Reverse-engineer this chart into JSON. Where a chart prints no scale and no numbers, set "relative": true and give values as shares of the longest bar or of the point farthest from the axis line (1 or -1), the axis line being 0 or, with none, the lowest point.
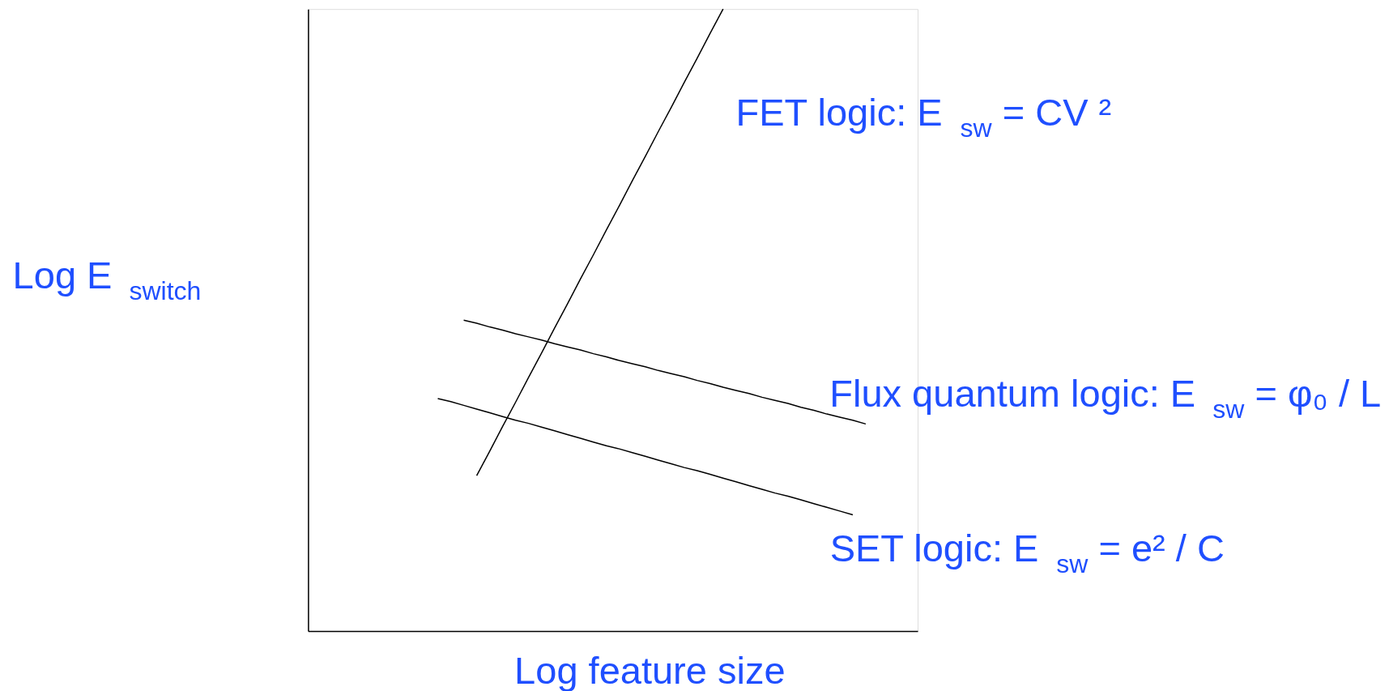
{
  "chart_data": {
    "type": "line",
    "relative": true,
    "xlabel": "Log feature size",
    "ylabel": "Log E $_{switch}$",
    "categories": [
      null,
      null,
      null,
      null,
      null,
      null,
      null,
      null,
      null,
      null,
      null,
      null,
      null,
      null,
      null,
      null,
      null,
      null,
      null,
      null,
      null,
      null,
      null,
      null,
      null,
      null,
      null,
      null,
      null,
      null,
      null,
      null,
      null,
      null,
      null,
      null,
      null,
      null,
      null,
      null,
      null,
      null,
      null,
      null,
      null,
      null,
      null,
      null
    ],
    "series": [
      {
        "name": "FET logic: E $_{sw}$ = CV ²",
        "color": "#000000",
        "values": [
          null,
          null,
          null,
          null,
          null,
          null,
          null,
          null,
          null,
          null,
          null,
          null,
          null,
          0.25,
          0.289,
          0.329,
          0.368,
          0.408,
          0.447,
          0.487,
          0.526,
          0.566,
          0.605,
          0.645,
          0.684,
          0.724,
          0.763,
          0.803,
          0.842,
          0.882,
          0.921,
          0.961,
          1.0,
          null,
          null,
          null,
          null,
          null,
          null,
          null,
          null,
          null,
          null,
          null,
          null,
          null,
          null,
          null
        ]
      },
      {
        "name": "Flux quantum logic: E $_{sw}$ = φ₀ / L",
        "color": "#000000",
        "values": [
          null,
          null,
          null,
          null,
          null,
          null,
          null,
          null,
          null,
          null,
          null,
          null,
          0.5,
          0.495,
          0.489,
          0.484,
          0.478,
          0.473,
          0.468,
          0.462,
          0.457,
          0.452,
          0.446,
          0.441,
          0.435,
          0.43,
          0.425,
          0.419,
          0.414,
          0.409,
          0.403,
          0.398,
          0.392,
          0.387,
          0.382,
          0.376,
          0.371,
          0.366,
          0.36,
          0.355,
          0.349,
          0.344,
          0.339,
          0.333,
          null,
          null,
          null,
          null
        ]
      },
      {
        "name": "SET logic: E $_{sw}$ = e² / C",
        "color": "#000000",
        "values": [
          null,
          null,
          null,
          null,
          null,
          null,
          null,
          null,
          null,
          null,
          0.374,
          0.369,
          0.363,
          0.357,
          0.351,
          0.345,
          0.339,
          0.334,
          0.328,
          0.322,
          0.316,
          0.31,
          0.304,
          0.298,
          0.293,
          0.287,
          0.281,
          0.275,
          0.269,
          0.263,
          0.258,
          0.252,
          0.246,
          0.24,
          0.234,
          0.228,
          0.222,
          0.217,
          0.211,
          0.205,
          0.199,
          0.193,
          0.187,
          null,
          null,
          null,
          null,
          null
        ]
      }
    ]
  }
}
